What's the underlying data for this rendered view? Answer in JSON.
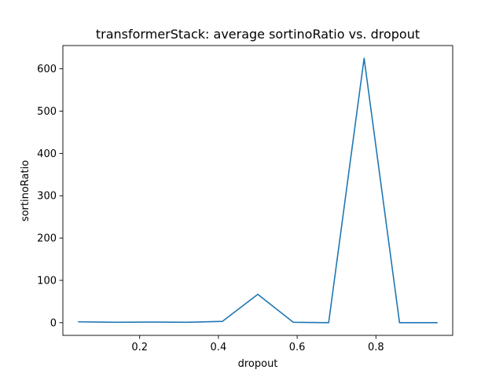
{
  "chart_data": {
    "type": "line",
    "title": "transformerStack: average sortinoRatio vs. dropout",
    "xlabel": "dropout",
    "ylabel": "sortinoRatio",
    "xlim": [
      0.005,
      0.995
    ],
    "ylim": [
      -30,
      655
    ],
    "xticks": [
      0.2,
      0.4,
      0.6,
      0.8
    ],
    "xtick_labels": [
      "0.2",
      "0.4",
      "0.6",
      "0.8"
    ],
    "yticks": [
      0,
      100,
      200,
      300,
      400,
      500,
      600
    ],
    "ytick_labels": [
      "0",
      "100",
      "200",
      "300",
      "400",
      "500",
      "600"
    ],
    "grid": false,
    "line_color": "#1f77b4",
    "series": [
      {
        "x": [
          0.045,
          0.14,
          0.23,
          0.32,
          0.41,
          0.5,
          0.59,
          0.68,
          0.77,
          0.86,
          0.955
        ],
        "y": [
          2,
          1,
          1.5,
          1,
          3,
          67,
          1,
          0,
          625,
          0,
          0
        ]
      }
    ]
  }
}
